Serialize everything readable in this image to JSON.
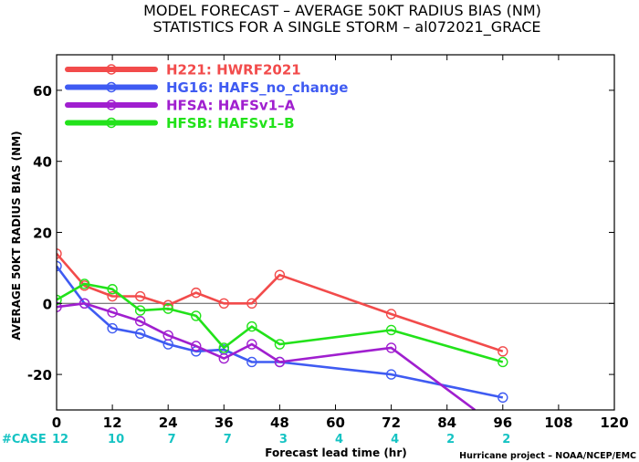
{
  "chart_data": {
    "type": "line",
    "title": "MODEL FORECAST – AVERAGE 50KT RADIUS BIAS (NM)",
    "subtitle": "STATISTICS FOR A SINGLE STORM – al072021_GRACE",
    "xlabel": "Forecast lead time (hr)",
    "ylabel": "AVERAGE 50KT RADIUS BIAS (NM)",
    "xlim": [
      0,
      120
    ],
    "ylim": [
      -30,
      70
    ],
    "xticks": [
      0,
      12,
      24,
      36,
      48,
      60,
      72,
      84,
      96,
      108,
      120
    ],
    "yticks": [
      -20,
      0,
      20,
      40,
      60
    ],
    "grid": false,
    "zero_line": true,
    "legend_position": "top-left",
    "series": [
      {
        "name": "H221: HWRF2021",
        "color": "#f24b4b",
        "x": [
          0,
          6,
          12,
          18,
          24,
          30,
          36,
          42,
          48,
          72,
          96
        ],
        "y": [
          14,
          5,
          2,
          2,
          -0.5,
          3,
          0,
          0,
          8,
          -3,
          -13.5
        ]
      },
      {
        "name": "HG16: HAFS_no_change",
        "color": "#3f5bf2",
        "x": [
          0,
          6,
          12,
          18,
          24,
          30,
          36,
          42,
          48,
          72,
          96
        ],
        "y": [
          10.5,
          0,
          -7,
          -8.5,
          -11.5,
          -13.5,
          -13,
          -16.5,
          -16.5,
          -20,
          -26.5
        ]
      },
      {
        "name": "HFSA: HAFSv1–A",
        "color": "#a01fcf",
        "x": [
          0,
          6,
          12,
          18,
          24,
          30,
          36,
          42,
          48,
          72,
          90
        ],
        "y": [
          -1,
          0,
          -2.5,
          -5,
          -9,
          -12,
          -15.5,
          -11.5,
          -16.5,
          -12.5,
          -30
        ]
      },
      {
        "name": "HFSB: HAFSv1–B",
        "color": "#22e21a",
        "x": [
          0,
          6,
          12,
          18,
          24,
          30,
          36,
          42,
          48,
          72,
          96
        ],
        "y": [
          1,
          5.5,
          4,
          -2,
          -1.5,
          -3.5,
          -12.5,
          -6.5,
          -11.5,
          -7.5,
          -16.5
        ]
      }
    ],
    "markers_x": [
      0,
      6,
      12,
      18,
      24,
      30,
      36,
      42,
      48,
      72,
      96
    ],
    "case_label": "#CASE",
    "case_counts": [
      {
        "x": 0,
        "n": "12"
      },
      {
        "x": 12,
        "n": "10"
      },
      {
        "x": 24,
        "n": "7"
      },
      {
        "x": 36,
        "n": "7"
      },
      {
        "x": 48,
        "n": "3"
      },
      {
        "x": 60,
        "n": "4"
      },
      {
        "x": 72,
        "n": "4"
      },
      {
        "x": 84,
        "n": "2"
      },
      {
        "x": 96,
        "n": "2"
      }
    ],
    "case_color": "#16c3c3",
    "credit": "Hurricane project – NOAA/NCEP/EMC"
  }
}
